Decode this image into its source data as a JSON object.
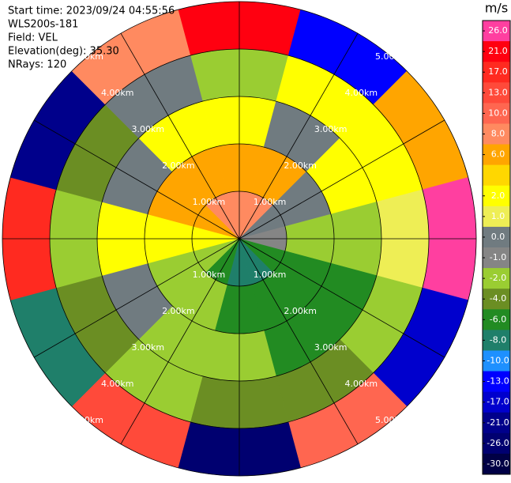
{
  "chart_data": {
    "type": "ppi",
    "info": [
      "Start time: 2023/09/24 04:55:56",
      "WLS200s-181",
      "Field: VEL",
      "Elevation(deg): 35.30",
      "NRays: 120"
    ],
    "rlim": [
      0,
      5
    ],
    "rings": [
      {
        "value": 1,
        "label": "1.00km"
      },
      {
        "value": 2,
        "label": "2.00km"
      },
      {
        "value": 3,
        "label": "3.00km"
      },
      {
        "value": 4,
        "label": "4.00km"
      },
      {
        "value": 5,
        "label": "5.00km"
      }
    ],
    "spokes": [
      0,
      30,
      60,
      90,
      120,
      150,
      180,
      210,
      240,
      270,
      300,
      330
    ],
    "sectors": [
      0,
      30,
      60,
      90,
      120,
      150,
      180,
      210,
      240,
      270,
      300,
      330
    ],
    "gates": [
      [
        0,
        1
      ],
      [
        1,
        2
      ],
      [
        2,
        3
      ],
      [
        3,
        4
      ],
      [
        4,
        5
      ]
    ],
    "field": [
      [
        8,
        8,
        0,
        -1,
        -6,
        -8,
        -8,
        -6,
        -2,
        2,
        6,
        8
      ],
      [
        6,
        6,
        0,
        -2,
        -6,
        -6,
        -6,
        -2,
        -2,
        2,
        6,
        6
      ],
      [
        2,
        0,
        2,
        -2,
        -6,
        -6,
        -2,
        -2,
        0,
        2,
        0,
        2
      ],
      [
        -2,
        2,
        2,
        1,
        -2,
        -4,
        -4,
        -2,
        -4,
        -2,
        -4,
        0
      ],
      [
        21,
        -13,
        6,
        26,
        -17,
        10,
        -26,
        13,
        -8,
        17,
        -21,
        8
      ]
    ],
    "colorbar": {
      "title": "m/s",
      "ticks": [
        {
          "value": 26,
          "label": "26.0"
        },
        {
          "value": 21,
          "label": "21.0"
        },
        {
          "value": 17,
          "label": "17.0"
        },
        {
          "value": 13,
          "label": "13.0"
        },
        {
          "value": 10,
          "label": "10.0"
        },
        {
          "value": 8,
          "label": "8.0"
        },
        {
          "value": 6,
          "label": "6.0"
        },
        null,
        {
          "value": 2,
          "label": "2.0"
        },
        {
          "value": 1,
          "label": "1.0"
        },
        {
          "value": 0,
          "label": "0.0"
        },
        {
          "value": -1,
          "label": "-1.0"
        },
        {
          "value": -2,
          "label": "-2.0"
        },
        {
          "value": -4,
          "label": "-4.0"
        },
        {
          "value": -6,
          "label": "-6.0"
        },
        {
          "value": -8,
          "label": "-8.0"
        },
        {
          "value": -10,
          "label": "-10.0"
        },
        {
          "value": -13,
          "label": "-13.0"
        },
        {
          "value": -17,
          "label": "-17.0"
        },
        {
          "value": -21,
          "label": "-21.0"
        },
        {
          "value": -26,
          "label": "-26.0"
        },
        {
          "value": -30,
          "label": "-30.0"
        }
      ],
      "colors": [
        "#ff3fa0",
        "#ff0010",
        "#ff2a20",
        "#ff4a3a",
        "#ff6650",
        "#ff8a60",
        "#ffa500",
        "#ffd700",
        "#ffff00",
        "#eeee55",
        "#707b80",
        "#858585",
        "#9acd32",
        "#6b8e23",
        "#228b22",
        "#1f7f6a",
        "#1e90ff",
        "#0000ff",
        "#0000cd",
        "#00008b",
        "#000070",
        "#000045"
      ]
    }
  }
}
